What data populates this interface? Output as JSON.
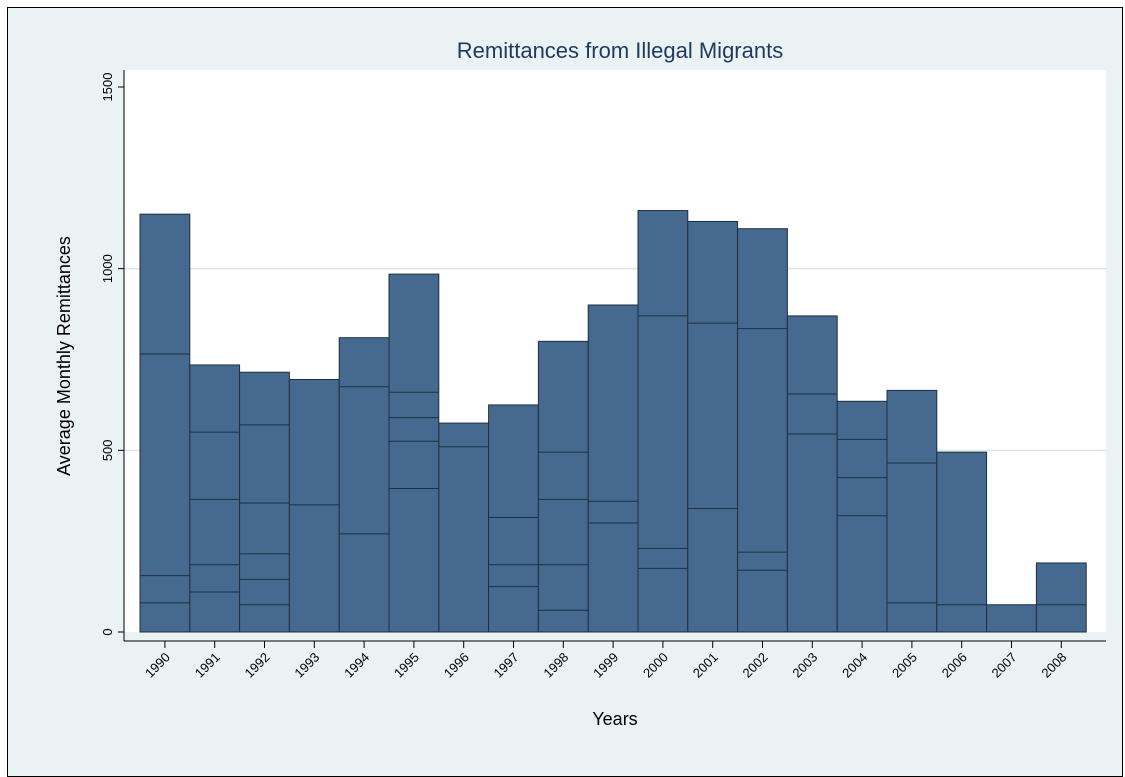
{
  "colors": {
    "background": "#eaf2f3",
    "plot_bg": "#ffffff",
    "bar_fill": "#466a8f",
    "bar_edge": "#1f2f3f",
    "grid": "#dbe7ea",
    "title": "#1e3a5f"
  },
  "chart_data": {
    "type": "bar",
    "title": "Remittances from Illegal Migrants",
    "xlabel": "Years",
    "ylabel": "Average Monthly Remittances",
    "ylim": [
      0,
      1500
    ],
    "yticks": [
      0,
      500,
      1000,
      1500
    ],
    "grid": true,
    "categories": [
      "1990",
      "1991",
      "1992",
      "1993",
      "1994",
      "1995",
      "1996",
      "1997",
      "1998",
      "1999",
      "2000",
      "2001",
      "2002",
      "2003",
      "2004",
      "2005",
      "2006",
      "2007",
      "2008"
    ],
    "values": [
      1150,
      735,
      715,
      695,
      810,
      985,
      575,
      625,
      800,
      900,
      1160,
      1130,
      1110,
      870,
      635,
      665,
      495,
      75,
      190
    ],
    "segment_boundaries": [
      [
        80,
        155,
        765
      ],
      [
        110,
        185,
        365,
        550
      ],
      [
        75,
        145,
        215,
        355,
        570
      ],
      [
        350
      ],
      [
        270,
        675
      ],
      [
        395,
        525,
        590,
        660
      ],
      [
        510
      ],
      [
        125,
        185,
        315
      ],
      [
        60,
        185,
        365,
        495
      ],
      [
        300,
        360
      ],
      [
        175,
        230,
        870
      ],
      [
        340,
        850
      ],
      [
        170,
        220,
        835
      ],
      [
        545,
        655
      ],
      [
        320,
        425,
        530
      ],
      [
        80,
        465
      ],
      [
        75
      ],
      [],
      [
        75
      ]
    ]
  }
}
